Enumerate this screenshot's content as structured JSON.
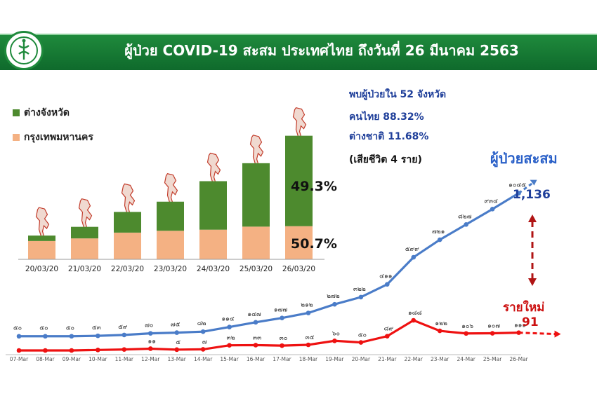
{
  "title": "ผู้ป่วย COVID-19 สะสม  ประเทศไทย ถึงวันที่ 26 มีนาคม 2563",
  "legend": [
    {
      "label": "ต่างจังหวัด",
      "color": "#4d8a2e"
    },
    {
      "label": "กรุงเทพมหานคร",
      "color": "#f4b183"
    }
  ],
  "info": {
    "provinces": "พบผู้ป่วยใน 52 จังหวัด",
    "thai": "คนไทย  88.32%",
    "foreign": "ต่างชาติ 11.68%",
    "deaths": "(เสียชีวิต 4 ราย)"
  },
  "callouts": {
    "cumulative_label": "ผู้ป่วยสะสม",
    "cumulative_value": "1,136",
    "new_label": "รายใหม่",
    "new_value": "91"
  },
  "colors": {
    "cumulative": "#4a7cc8",
    "new": "#ee1111",
    "province": "#4d8a2e",
    "bangkok": "#f4b183"
  },
  "chart_data": [
    {
      "type": "bar",
      "stacked": true,
      "categories": [
        "20/03/20",
        "21/03/20",
        "22/03/20",
        "23/03/20",
        "24/03/20",
        "25/03/20",
        "26/03/20"
      ],
      "series": [
        {
          "name": "กรุงเทพมหานคร",
          "values": [
            168,
            192,
            245,
            262,
            272,
            300,
            304
          ]
        },
        {
          "name": "ต่างจังหวัด",
          "values": [
            50,
            106,
            190,
            267,
            445,
            582,
            830
          ]
        }
      ],
      "percent_labels": {
        "province": "49.3%",
        "bangkok": "50.7%"
      }
    },
    {
      "type": "line",
      "x": [
        "07-Mar",
        "08-Mar",
        "09-Mar",
        "10-Mar",
        "11-Mar",
        "12-Mar",
        "13-Mar",
        "14-Mar",
        "15-Mar",
        "16-Mar",
        "17-Mar",
        "18-Mar",
        "19-Mar",
        "20-Mar",
        "21-Mar",
        "22-Mar",
        "23-Mar",
        "24-Mar",
        "25-Mar",
        "26-Mar"
      ],
      "series": [
        {
          "values": [
            50,
            50,
            50,
            53,
            59,
            70,
            75,
            82,
            114,
            147,
            177,
            212,
            272,
            322,
            411,
            599,
            721,
            827,
            934,
            1045
          ],
          "labels": [
            "๕๐",
            "๕๐",
            "๕๐",
            "๕๓",
            "๕๙",
            "๗๐",
            "๗๕",
            "๘๒",
            "๑๑๔",
            "๑๔๗",
            "๑๗๗",
            "๒๑๒",
            "๒๗๒",
            "๓๒๒",
            "๔๑๑",
            "๕๙๙",
            "๗๒๑",
            "๘๒๗",
            "๙๓๔",
            "๑๐๔๕"
          ]
        },
        {
          "values": [
            0,
            0,
            0,
            3,
            6,
            11,
            5,
            7,
            32,
            33,
            30,
            35,
            60,
            50,
            89,
            188,
            122,
            106,
            107,
            111
          ],
          "labels": [
            "",
            "",
            "",
            "",
            "",
            "๑๑",
            "๕",
            "๗",
            "๓๒",
            "๓๓",
            "๓๐",
            "๓๕",
            "๖๐",
            "๕๐",
            "๘๙",
            "๑๘๘",
            "๑๒๒",
            "๑๐๖",
            "๑๐๗",
            "๑๑๑"
          ]
        }
      ],
      "projection": {
        "cumulative": 1136,
        "new": 91
      }
    }
  ]
}
